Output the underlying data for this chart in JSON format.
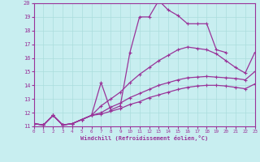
{
  "xlabel": "Windchill (Refroidissement éolien,°C)",
  "bg_color": "#c8eef0",
  "line_color": "#993399",
  "grid_color": "#aadddd",
  "xlim": [
    0,
    23
  ],
  "ylim": [
    11,
    20
  ],
  "yticks": [
    11,
    12,
    13,
    14,
    15,
    16,
    17,
    18,
    19,
    20
  ],
  "xticks": [
    0,
    1,
    2,
    3,
    4,
    5,
    6,
    7,
    8,
    9,
    10,
    11,
    12,
    13,
    14,
    15,
    16,
    17,
    18,
    19,
    20,
    21,
    22,
    23
  ],
  "line_zigzag_x": [
    0,
    1,
    2,
    3,
    4,
    5,
    6,
    7,
    8,
    9,
    10,
    11,
    12,
    13,
    14,
    15,
    16,
    17,
    18,
    19,
    20,
    21,
    22,
    23
  ],
  "line_zigzag_y": [
    11.2,
    11.1,
    11.8,
    11.1,
    11.2,
    11.5,
    11.8,
    14.2,
    12.2,
    12.5,
    16.4,
    19.0,
    19.0,
    20.2,
    19.5,
    19.1,
    18.5,
    18.5,
    18.5,
    16.6,
    16.4,
    null,
    null,
    null
  ],
  "line_upper_x": [
    0,
    1,
    2,
    3,
    4,
    5,
    6,
    7,
    8,
    9,
    10,
    11,
    12,
    13,
    14,
    15,
    16,
    17,
    18,
    19,
    20,
    21,
    22,
    23
  ],
  "line_upper_y": [
    11.2,
    11.1,
    11.8,
    11.1,
    11.2,
    11.5,
    11.8,
    12.5,
    13.0,
    13.5,
    14.2,
    14.8,
    15.3,
    15.8,
    16.2,
    16.6,
    16.8,
    16.7,
    16.6,
    16.3,
    15.8,
    15.3,
    14.9,
    16.4
  ],
  "line_mid_x": [
    0,
    1,
    2,
    3,
    4,
    5,
    6,
    7,
    8,
    9,
    10,
    11,
    12,
    13,
    14,
    15,
    16,
    17,
    18,
    19,
    20,
    21,
    22,
    23
  ],
  "line_mid_y": [
    11.2,
    11.1,
    11.8,
    11.1,
    11.2,
    11.5,
    11.8,
    12.0,
    12.4,
    12.7,
    13.1,
    13.4,
    13.7,
    14.0,
    14.2,
    14.4,
    14.55,
    14.6,
    14.65,
    14.6,
    14.55,
    14.5,
    14.4,
    15.0
  ],
  "line_low_x": [
    0,
    1,
    2,
    3,
    4,
    5,
    6,
    7,
    8,
    9,
    10,
    11,
    12,
    13,
    14,
    15,
    16,
    17,
    18,
    19,
    20,
    21,
    22,
    23
  ],
  "line_low_y": [
    11.2,
    11.1,
    11.8,
    11.1,
    11.2,
    11.5,
    11.8,
    11.9,
    12.1,
    12.3,
    12.6,
    12.8,
    13.1,
    13.3,
    13.5,
    13.7,
    13.85,
    13.95,
    14.0,
    14.0,
    13.95,
    13.85,
    13.75,
    14.1
  ],
  "marker": "+"
}
